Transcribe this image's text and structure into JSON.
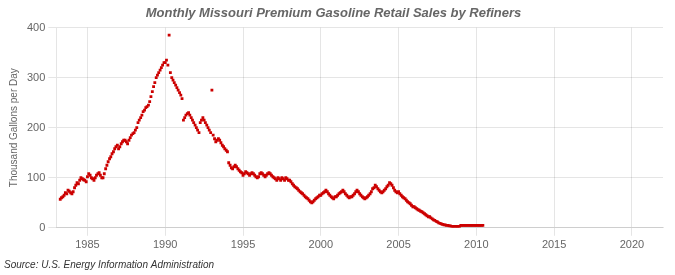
{
  "chart_data": {
    "type": "scatter",
    "title": "Monthly Missouri Premium Gasoline Retail Sales by Refiners",
    "ylabel": "Thousand Gallons per Day",
    "annotations": [
      "Source: U.S. Energy Information Administration"
    ],
    "color": "#cc0000",
    "marker": "square",
    "grid": true,
    "xlim": [
      1983.0,
      2022.0
    ],
    "ylim": [
      0,
      400
    ],
    "xticks": [
      1985,
      1990,
      1995,
      2000,
      2005,
      2010,
      2015,
      2020
    ],
    "yticks": [
      0,
      100,
      200,
      300,
      400
    ],
    "x": [
      1983.25,
      1983.33,
      1983.42,
      1983.5,
      1983.58,
      1983.67,
      1983.75,
      1983.83,
      1983.92,
      1984.0,
      1984.08,
      1984.17,
      1984.25,
      1984.33,
      1984.42,
      1984.5,
      1984.58,
      1984.67,
      1984.75,
      1984.83,
      1984.92,
      1985.0,
      1985.08,
      1985.17,
      1985.25,
      1985.33,
      1985.42,
      1985.5,
      1985.58,
      1985.67,
      1985.75,
      1985.83,
      1985.92,
      1986.0,
      1986.08,
      1986.17,
      1986.25,
      1986.33,
      1986.42,
      1986.5,
      1986.58,
      1986.67,
      1986.75,
      1986.83,
      1986.92,
      1987.0,
      1987.08,
      1987.17,
      1987.25,
      1987.33,
      1987.42,
      1987.5,
      1987.58,
      1987.67,
      1987.75,
      1987.83,
      1987.92,
      1988.0,
      1988.08,
      1988.17,
      1988.25,
      1988.33,
      1988.42,
      1988.5,
      1988.58,
      1988.67,
      1988.75,
      1988.83,
      1988.92,
      1989.0,
      1989.08,
      1989.17,
      1989.25,
      1989.33,
      1989.42,
      1989.5,
      1989.58,
      1989.67,
      1989.75,
      1989.83,
      1989.92,
      1990.0,
      1990.08,
      1990.17,
      1990.25,
      1990.33,
      1990.42,
      1990.5,
      1990.58,
      1990.67,
      1990.75,
      1990.83,
      1990.92,
      1991.0,
      1991.08,
      1991.17,
      1991.25,
      1991.33,
      1991.42,
      1991.5,
      1991.58,
      1991.67,
      1991.75,
      1991.83,
      1991.92,
      1992.0,
      1992.08,
      1992.17,
      1992.25,
      1992.33,
      1992.42,
      1992.5,
      1992.58,
      1992.67,
      1992.75,
      1992.83,
      1992.92,
      1993.0,
      1993.08,
      1993.17,
      1993.25,
      1993.33,
      1993.42,
      1993.5,
      1993.58,
      1993.67,
      1993.75,
      1993.83,
      1993.92,
      1994.0,
      1994.08,
      1994.17,
      1994.25,
      1994.33,
      1994.42,
      1994.5,
      1994.58,
      1994.67,
      1994.75,
      1994.83,
      1994.92,
      1995.0,
      1995.08,
      1995.17,
      1995.25,
      1995.33,
      1995.42,
      1995.5,
      1995.58,
      1995.67,
      1995.75,
      1995.83,
      1995.92,
      1996.0,
      1996.08,
      1996.17,
      1996.25,
      1996.33,
      1996.42,
      1996.5,
      1996.58,
      1996.67,
      1996.75,
      1996.83,
      1996.92,
      1997.0,
      1997.08,
      1997.17,
      1997.25,
      1997.33,
      1997.42,
      1997.5,
      1997.58,
      1997.67,
      1997.75,
      1997.83,
      1997.92,
      1998.0,
      1998.08,
      1998.17,
      1998.25,
      1998.33,
      1998.42,
      1998.5,
      1998.58,
      1998.67,
      1998.75,
      1998.83,
      1998.92,
      1999.0,
      1999.08,
      1999.17,
      1999.25,
      1999.33,
      1999.42,
      1999.5,
      1999.58,
      1999.67,
      1999.75,
      1999.83,
      1999.92,
      2000.0,
      2000.08,
      2000.17,
      2000.25,
      2000.33,
      2000.42,
      2000.5,
      2000.58,
      2000.67,
      2000.75,
      2000.83,
      2000.92,
      2001.0,
      2001.08,
      2001.17,
      2001.25,
      2001.33,
      2001.42,
      2001.5,
      2001.58,
      2001.67,
      2001.75,
      2001.83,
      2001.92,
      2002.0,
      2002.08,
      2002.17,
      2002.25,
      2002.33,
      2002.42,
      2002.5,
      2002.58,
      2002.67,
      2002.75,
      2002.83,
      2002.92,
      2003.0,
      2003.08,
      2003.17,
      2003.25,
      2003.33,
      2003.42,
      2003.5,
      2003.58,
      2003.67,
      2003.75,
      2003.83,
      2003.92,
      2004.0,
      2004.08,
      2004.17,
      2004.25,
      2004.33,
      2004.42,
      2004.5,
      2004.58,
      2004.67,
      2004.75,
      2004.83,
      2004.92,
      2005.0,
      2005.08,
      2005.17,
      2005.25,
      2005.33,
      2005.42,
      2005.5,
      2005.58,
      2005.67,
      2005.75,
      2005.83,
      2005.92,
      2006.0,
      2006.08,
      2006.17,
      2006.25,
      2006.33,
      2006.42,
      2006.5,
      2006.58,
      2006.67,
      2006.75,
      2006.83,
      2006.92,
      2007.0,
      2007.08,
      2007.17,
      2007.25,
      2007.33,
      2007.42,
      2007.5,
      2007.58,
      2007.67,
      2007.75,
      2007.83,
      2007.92,
      2008.0,
      2008.08,
      2008.17,
      2008.25,
      2008.33,
      2008.42,
      2008.5,
      2008.58,
      2008.67,
      2008.75,
      2008.83,
      2008.92,
      2009.0,
      2009.08,
      2009.17,
      2009.25,
      2009.33,
      2009.42,
      2009.5,
      2009.58,
      2009.67,
      2009.75,
      2009.83,
      2009.92,
      2010.0,
      2010.08,
      2010.17,
      2010.25,
      2010.33,
      2010.42
    ],
    "values": [
      57,
      60,
      62,
      65,
      70,
      68,
      75,
      73,
      70,
      68,
      72,
      80,
      85,
      90,
      88,
      95,
      100,
      98,
      96,
      95,
      92,
      102,
      108,
      105,
      100,
      98,
      95,
      100,
      105,
      108,
      110,
      105,
      100,
      100,
      108,
      118,
      125,
      132,
      138,
      142,
      148,
      152,
      158,
      162,
      165,
      158,
      162,
      168,
      172,
      175,
      175,
      172,
      168,
      175,
      180,
      185,
      188,
      190,
      195,
      200,
      210,
      215,
      220,
      225,
      232,
      235,
      240,
      242,
      245,
      252,
      262,
      272,
      282,
      290,
      300,
      305,
      310,
      315,
      320,
      325,
      330,
      330,
      335,
      325,
      385,
      310,
      300,
      295,
      290,
      285,
      280,
      275,
      270,
      265,
      258,
      215,
      220,
      225,
      228,
      230,
      225,
      220,
      215,
      210,
      205,
      200,
      195,
      190,
      210,
      215,
      220,
      215,
      210,
      205,
      200,
      195,
      190,
      275,
      185,
      178,
      172,
      175,
      178,
      175,
      170,
      165,
      162,
      158,
      155,
      152,
      130,
      125,
      120,
      118,
      122,
      125,
      122,
      118,
      115,
      112,
      110,
      105,
      108,
      112,
      110,
      108,
      105,
      108,
      110,
      108,
      105,
      102,
      100,
      102,
      108,
      110,
      108,
      105,
      102,
      105,
      108,
      110,
      108,
      105,
      102,
      100,
      98,
      95,
      100,
      98,
      95,
      100,
      98,
      95,
      100,
      98,
      95,
      95,
      92,
      88,
      85,
      82,
      80,
      78,
      75,
      72,
      70,
      68,
      65,
      62,
      60,
      58,
      55,
      52,
      50,
      52,
      55,
      58,
      60,
      62,
      65,
      65,
      68,
      70,
      72,
      75,
      72,
      68,
      65,
      62,
      60,
      58,
      62,
      62,
      65,
      68,
      70,
      72,
      75,
      72,
      68,
      65,
      62,
      60,
      62,
      62,
      65,
      68,
      72,
      75,
      72,
      68,
      65,
      62,
      60,
      58,
      60,
      62,
      65,
      68,
      72,
      78,
      80,
      85,
      82,
      78,
      75,
      72,
      70,
      72,
      75,
      78,
      82,
      85,
      90,
      88,
      85,
      80,
      75,
      72,
      70,
      72,
      68,
      65,
      62,
      60,
      58,
      55,
      52,
      50,
      48,
      45,
      42,
      42,
      40,
      38,
      36,
      35,
      33,
      32,
      30,
      28,
      26,
      24,
      22,
      22,
      20,
      18,
      16,
      15,
      13,
      12,
      10,
      9,
      8,
      7,
      6,
      6,
      5,
      5,
      4,
      4,
      3,
      3,
      3,
      3,
      3,
      3,
      3,
      5,
      5,
      5,
      5,
      5,
      5,
      5,
      5,
      5,
      5,
      5,
      5,
      5,
      5,
      5,
      5,
      5,
      5
    ]
  }
}
